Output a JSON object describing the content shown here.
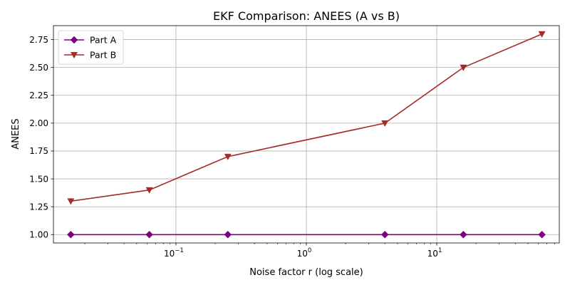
{
  "chart_data": {
    "type": "line",
    "title": "EKF Comparison: ANEES (A vs B)",
    "xlabel": "Noise factor r (log scale)",
    "ylabel": "ANEES",
    "xscale": "log",
    "x": [
      0.015625,
      0.0625,
      0.25,
      4,
      16,
      64
    ],
    "xlim": [
      0.0115,
      87
    ],
    "ylim": [
      0.925,
      2.875
    ],
    "yticks": [
      1.0,
      1.25,
      1.5,
      1.75,
      2.0,
      2.25,
      2.5,
      2.75
    ],
    "ytick_labels": [
      "1.00",
      "1.25",
      "1.50",
      "1.75",
      "2.00",
      "2.25",
      "2.50",
      "2.75"
    ],
    "xticks": [
      {
        "value": 0.1,
        "base": "10",
        "exp": "−1"
      },
      {
        "value": 1,
        "base": "10",
        "exp": "0"
      },
      {
        "value": 10,
        "base": "10",
        "exp": "1"
      }
    ],
    "grid": true,
    "legend_position": "top-left",
    "series": [
      {
        "name": "Part A",
        "values": [
          1.0,
          1.0,
          1.0,
          1.0,
          1.0,
          1.0
        ],
        "color": "#800080",
        "marker": "diamond"
      },
      {
        "name": "Part B",
        "values": [
          1.3,
          1.4,
          1.7,
          2.0,
          2.5,
          2.8
        ],
        "color": "#a52a2a",
        "marker": "triangle-down"
      }
    ]
  }
}
